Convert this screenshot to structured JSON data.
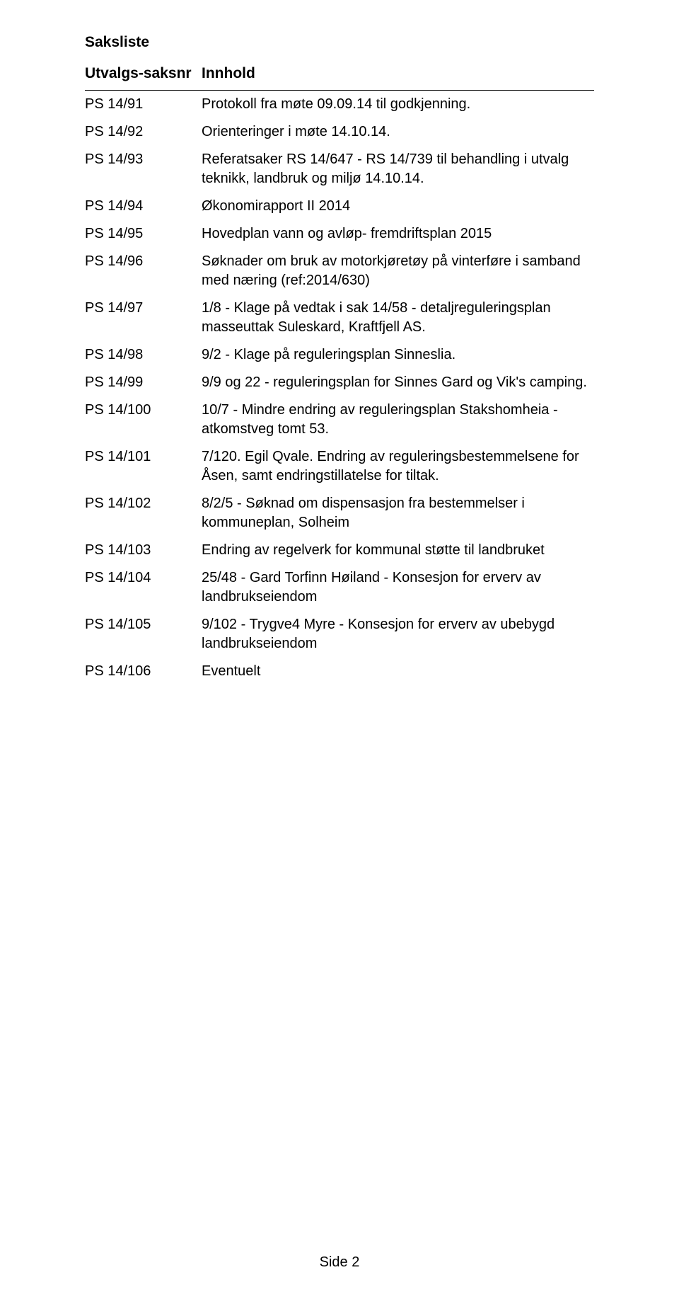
{
  "document": {
    "title": "Saksliste",
    "header": {
      "left": "Utvalgs-saksnr",
      "right": "Innhold"
    },
    "rows": [
      {
        "id": "PS 14/91",
        "desc": "Protokoll fra møte 09.09.14 til godkjenning."
      },
      {
        "id": "PS 14/92",
        "desc": "Orienteringer i møte 14.10.14."
      },
      {
        "id": "PS 14/93",
        "desc": "Referatsaker RS 14/647 - RS 14/739 til behandling i utvalg teknikk, landbruk og miljø 14.10.14."
      },
      {
        "id": "PS 14/94",
        "desc": "Økonomirapport II 2014"
      },
      {
        "id": "PS 14/95",
        "desc": "Hovedplan vann og avløp- fremdriftsplan 2015"
      },
      {
        "id": "PS 14/96",
        "desc": "Søknader om bruk av motorkjøretøy på vinterføre i samband med næring (ref:2014/630)"
      },
      {
        "id": "PS 14/97",
        "desc": "1/8 - Klage på vedtak i sak 14/58 - detaljreguleringsplan masseuttak Suleskard, Kraftfjell AS."
      },
      {
        "id": "PS 14/98",
        "desc": "9/2 - Klage på reguleringsplan Sinneslia."
      },
      {
        "id": "PS 14/99",
        "desc": "9/9 og 22 - reguleringsplan for Sinnes Gard og Vik's camping."
      },
      {
        "id": "PS 14/100",
        "desc": "10/7 - Mindre endring av reguleringsplan Stakshomheia - atkomstveg tomt 53."
      },
      {
        "id": "PS 14/101",
        "desc": "7/120. Egil Qvale. Endring av reguleringsbestemmelsene for Åsen, samt endringstillatelse for tiltak."
      },
      {
        "id": "PS 14/102",
        "desc": "8/2/5 - Søknad om dispensasjon fra bestemmelser i kommuneplan, Solheim"
      },
      {
        "id": "PS 14/103",
        "desc": "Endring av regelverk for kommunal støtte til landbruket"
      },
      {
        "id": "PS 14/104",
        "desc": "25/48 - Gard Torfinn Høiland - Konsesjon for erverv av landbrukseiendom"
      },
      {
        "id": "PS 14/105",
        "desc": "9/102 - Trygve4 Myre - Konsesjon for erverv av ubebygd landbrukseiendom"
      },
      {
        "id": "PS 14/106",
        "desc": "Eventuelt"
      }
    ],
    "footer": "Side 2",
    "colors": {
      "text": "#000000",
      "background": "#ffffff",
      "rule": "#000000"
    },
    "typography": {
      "family": "Arial",
      "title_pt": 16,
      "header_pt": 16,
      "body_pt": 15
    }
  }
}
